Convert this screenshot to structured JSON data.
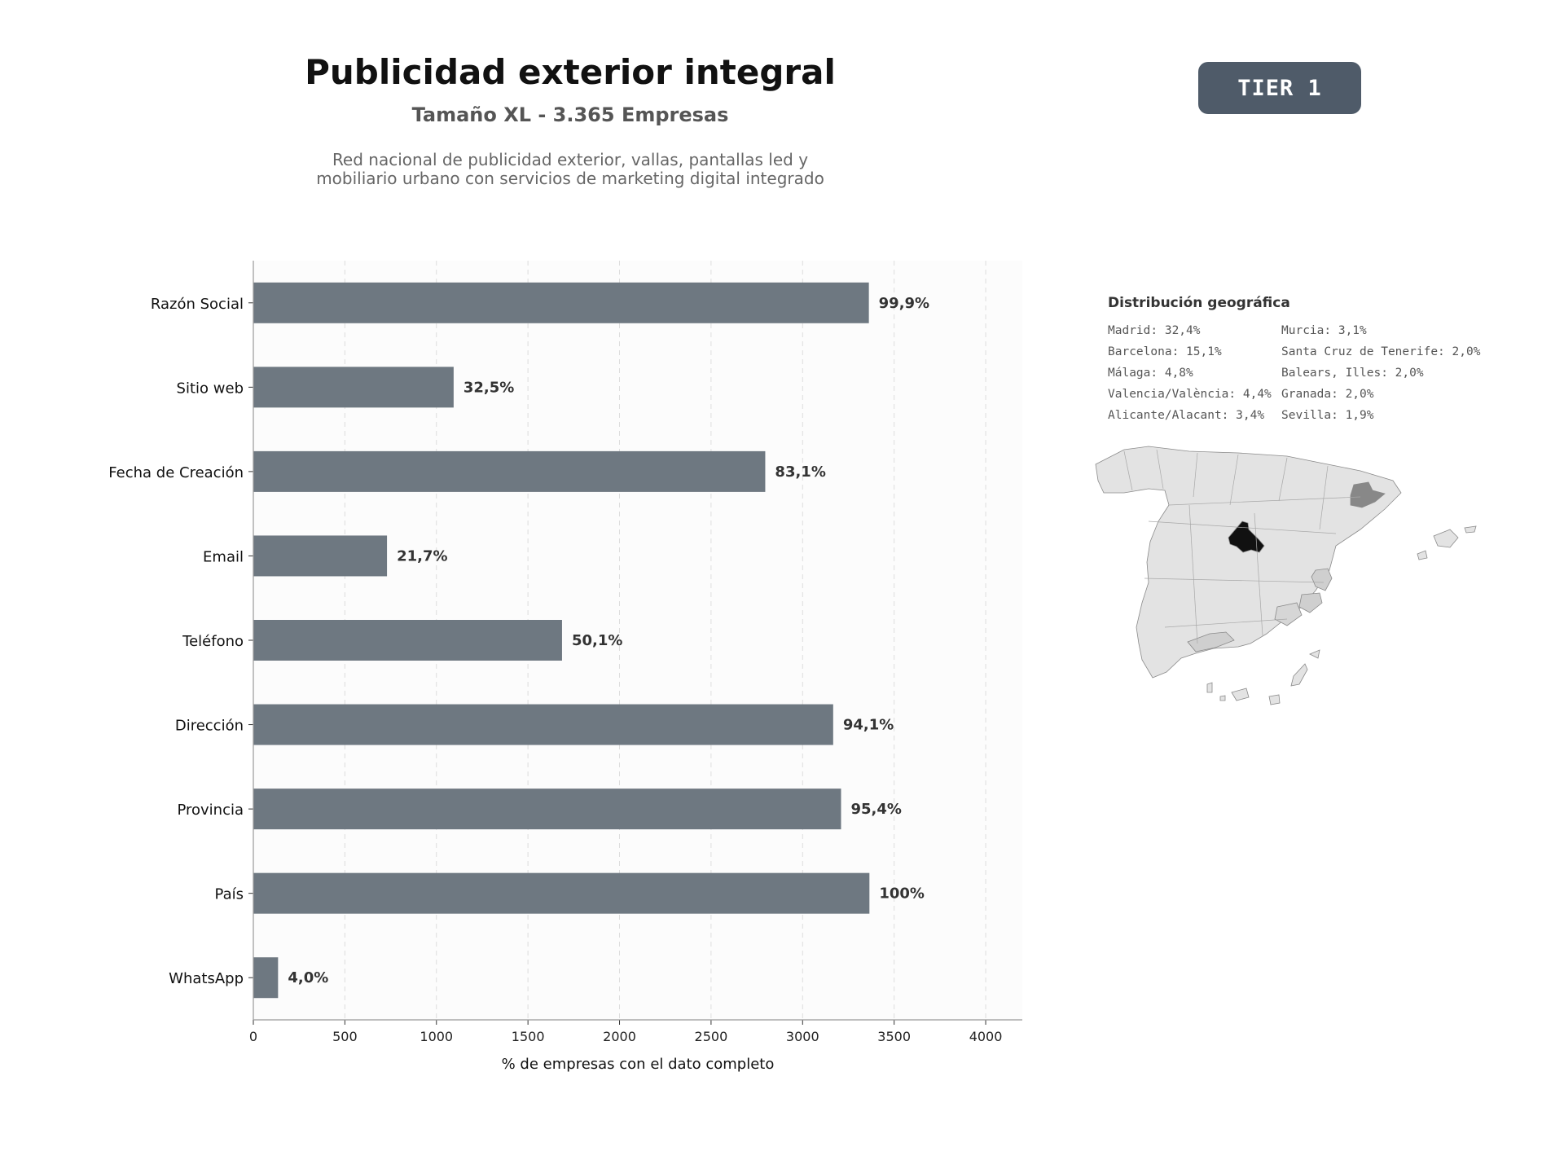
{
  "header": {
    "title": "Publicidad exterior integral",
    "subtitle": "Tamaño XL - 3.365 Empresas",
    "description_line1": "Red nacional de publicidad exterior, vallas, pantallas led y",
    "description_line2": "mobiliario urbano con servicios de marketing digital integrado",
    "tier": "TIER 1"
  },
  "colors": {
    "bar": "#6e7881",
    "tier_badge": "#4f5b69",
    "plot_background": "#fcfcfc",
    "map_default": "#e3e3e3",
    "map_madrid": "#111111",
    "map_barcelona": "#888888",
    "map_secondary": "#cfcfcf"
  },
  "chart_data": {
    "type": "bar",
    "orientation": "horizontal",
    "categories": [
      "Razón Social",
      "Sitio web",
      "Fecha de Creación",
      "Email",
      "Teléfono",
      "Dirección",
      "Provincia",
      "País",
      "WhatsApp"
    ],
    "values": [
      3362,
      1094,
      2796,
      730,
      1686,
      3167,
      3210,
      3365,
      135
    ],
    "labels": [
      "99,9%",
      "32,5%",
      "83,1%",
      "21,7%",
      "50,1%",
      "94,1%",
      "95,4%",
      "100%",
      "4,0%"
    ],
    "xlabel": "% de empresas con el dato completo",
    "xlim": [
      0,
      4200
    ],
    "xticks": [
      0,
      500,
      1000,
      1500,
      2000,
      2500,
      3000,
      3500,
      4000
    ],
    "grid": "vertical dashed"
  },
  "geo": {
    "title": "Distribución geográfica",
    "col1": [
      "Madrid: 32,4%",
      "Barcelona: 15,1%",
      "Málaga: 4,8%",
      "Valencia/València: 4,4%",
      "Alicante/Alacant: 3,4%"
    ],
    "col2": [
      "Murcia: 3,1%",
      "Santa Cruz de Tenerife: 2,0%",
      "Balears, Illes: 2,0%",
      "Granada: 2,0%",
      "Sevilla: 1,9%"
    ]
  }
}
